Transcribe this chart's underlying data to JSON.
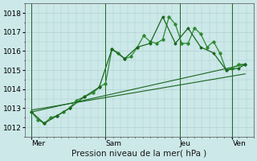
{
  "xlabel": "Pression niveau de la mer( hPa )",
  "bg_color": "#cce8e8",
  "grid_color": "#aacccc",
  "line_color_dark": "#1a6620",
  "line_color_mid": "#2d8a30",
  "ylim": [
    1011.5,
    1018.5
  ],
  "yticks": [
    1012,
    1013,
    1014,
    1015,
    1016,
    1017,
    1018
  ],
  "day_labels": [
    "Mer",
    "Sam",
    "Jeu",
    "Ven"
  ],
  "vline_x": [
    0.0,
    3.5,
    7.0,
    9.5
  ],
  "series1_x": [
    0.0,
    0.3,
    0.6,
    0.9,
    1.2,
    1.5,
    1.8,
    2.1,
    2.5,
    2.9,
    3.2,
    3.5,
    3.8,
    4.1,
    4.4,
    4.7,
    5.0,
    5.3,
    5.6,
    5.9,
    6.2,
    6.5,
    6.8,
    7.1,
    7.4,
    7.7,
    8.0,
    8.3,
    8.6,
    8.9,
    9.2,
    9.5,
    9.8,
    10.1
  ],
  "series1_y": [
    1012.8,
    1012.4,
    1012.2,
    1012.5,
    1012.6,
    1012.8,
    1013.0,
    1013.4,
    1013.6,
    1013.8,
    1014.1,
    1014.3,
    1016.1,
    1015.9,
    1015.6,
    1015.7,
    1016.2,
    1016.8,
    1016.5,
    1016.4,
    1016.6,
    1017.8,
    1017.4,
    1016.4,
    1016.4,
    1017.2,
    1016.9,
    1016.2,
    1016.5,
    1015.9,
    1015.0,
    1015.1,
    1015.3,
    1015.3
  ],
  "series2_x": [
    0.0,
    0.6,
    1.2,
    1.8,
    2.5,
    3.2,
    3.8,
    4.4,
    5.0,
    5.6,
    6.2,
    6.8,
    7.4,
    8.0,
    8.6,
    9.2,
    9.8,
    10.1
  ],
  "series2_y": [
    1012.8,
    1012.2,
    1012.6,
    1013.0,
    1013.6,
    1014.1,
    1016.1,
    1015.6,
    1016.2,
    1016.4,
    1017.8,
    1016.4,
    1017.2,
    1016.2,
    1015.9,
    1015.0,
    1015.1,
    1015.3
  ],
  "trend1_x": [
    0.0,
    10.1
  ],
  "trend1_y": [
    1012.8,
    1015.3
  ],
  "trend2_x": [
    0.0,
    10.1
  ],
  "trend2_y": [
    1012.9,
    1014.8
  ],
  "xlim": [
    -0.3,
    10.5
  ],
  "xlabel_fontsize": 7.5,
  "tick_fontsize": 6.5
}
